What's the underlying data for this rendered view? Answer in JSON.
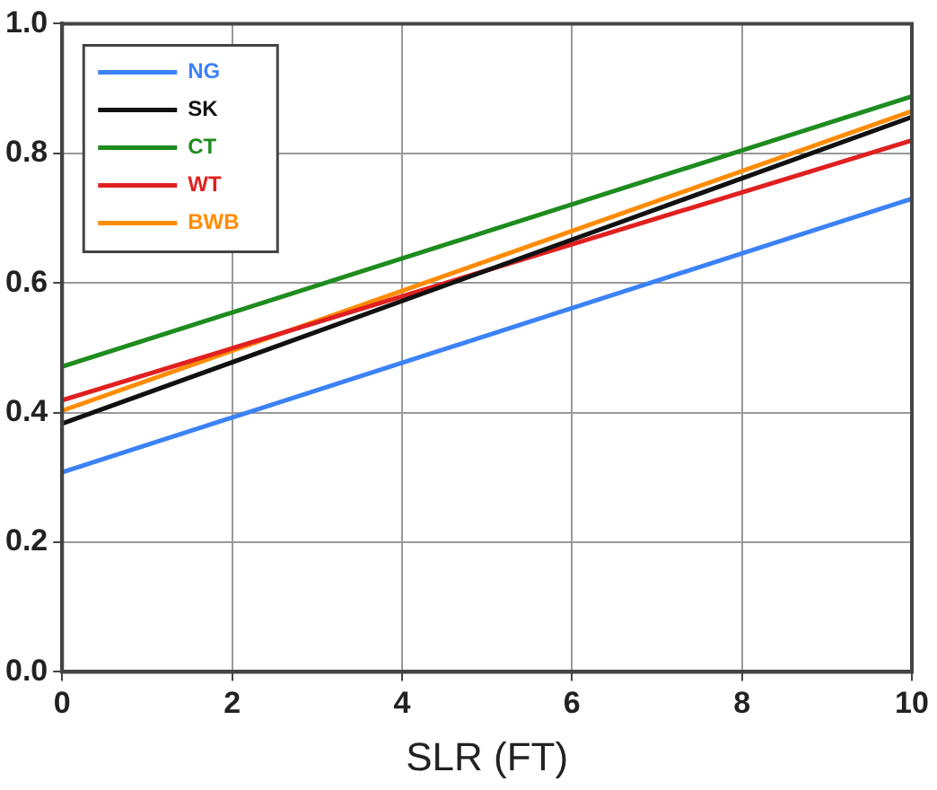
{
  "chart_data": {
    "type": "line",
    "xlabel": "SLR (FT)",
    "x": [
      0,
      10
    ],
    "series": [
      {
        "name": "NG",
        "color": "#3b82f6",
        "values": [
          0.308,
          0.73
        ]
      },
      {
        "name": "SK",
        "color": "#111111",
        "values": [
          0.383,
          0.856
        ]
      },
      {
        "name": "CT",
        "color": "#1e8c1e",
        "values": [
          0.471,
          0.888
        ]
      },
      {
        "name": "WT",
        "color": "#e02020",
        "values": [
          0.419,
          0.82
        ]
      },
      {
        "name": "BWB",
        "color": "#ff8c00",
        "values": [
          0.403,
          0.865
        ]
      }
    ],
    "xlim": [
      0,
      10
    ],
    "xticks": [
      0,
      2,
      4,
      6,
      8,
      10
    ],
    "ylim": [
      0,
      1
    ],
    "yticks": [
      {
        "value": 0,
        "label": "0.0"
      },
      {
        "value": 0.2,
        "label": "0.2"
      },
      {
        "value": 0.4,
        "label": "0.4"
      },
      {
        "value": 0.6,
        "label": "0.6"
      },
      {
        "value": 0.8,
        "label": "0.8"
      },
      {
        "value": 1,
        "label": "1.0"
      }
    ],
    "grid": true,
    "legend": "top left",
    "marker": "none",
    "line_style": "solid"
  }
}
